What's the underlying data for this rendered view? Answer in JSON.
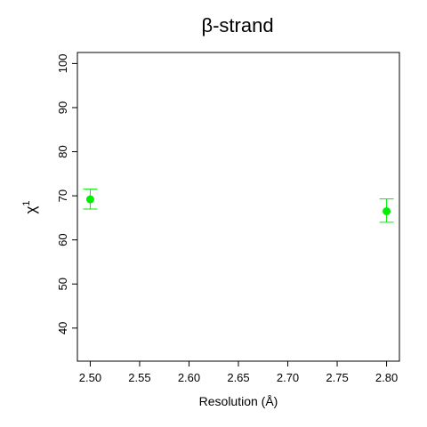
{
  "chart_data": {
    "type": "scatter",
    "title": "β-strand",
    "xlabel": "Resolution (Å)",
    "ylabel_main": "χ",
    "ylabel_sup": "1",
    "xlim": [
      2.487,
      2.813
    ],
    "ylim": [
      32.5,
      102.5
    ],
    "x_ticks": [
      2.5,
      2.55,
      2.6,
      2.65,
      2.7,
      2.75,
      2.8
    ],
    "x_tick_labels": [
      "2.50",
      "2.55",
      "2.60",
      "2.65",
      "2.70",
      "2.75",
      "2.80"
    ],
    "y_ticks": [
      40,
      50,
      60,
      70,
      80,
      90,
      100
    ],
    "y_tick_labels": [
      "40",
      "50",
      "60",
      "70",
      "80",
      "90",
      "100"
    ],
    "grid": false,
    "series": [
      {
        "color": "#00ee00",
        "points": [
          {
            "x": 2.5,
            "y": 69.2,
            "err_low": 67.0,
            "err_high": 71.5
          },
          {
            "x": 2.8,
            "y": 66.5,
            "err_low": 64.0,
            "err_high": 69.3
          }
        ]
      }
    ]
  }
}
